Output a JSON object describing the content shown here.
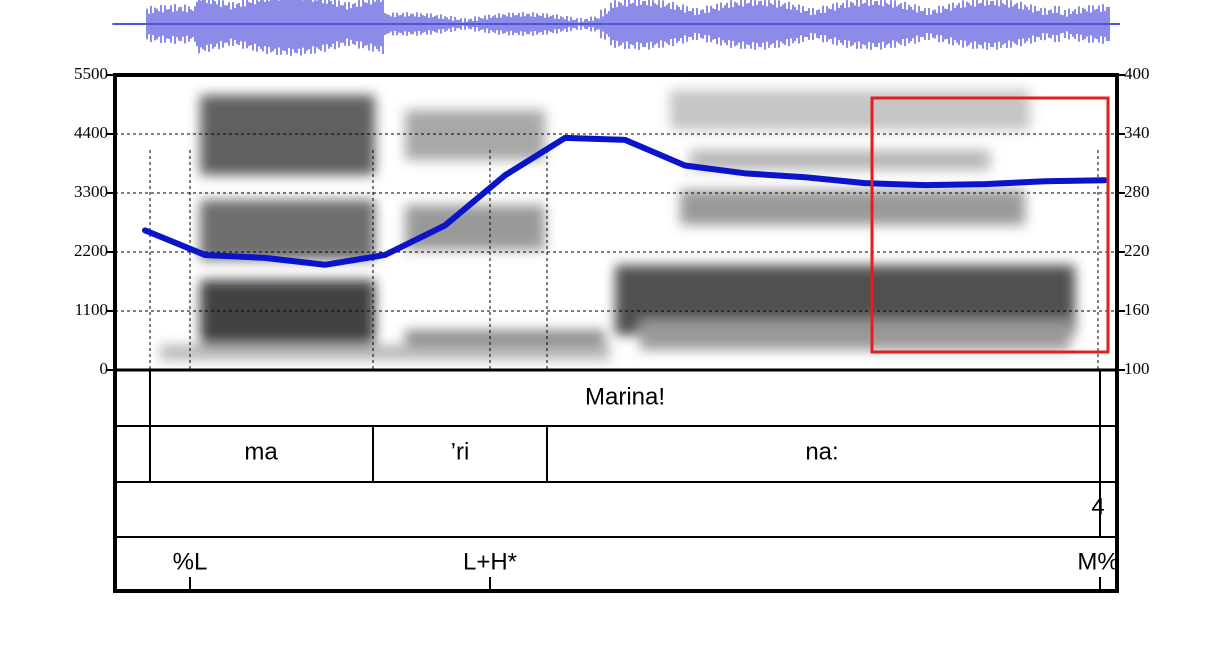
{
  "spectrogram": {
    "ylim": [
      0,
      5500
    ],
    "yticks": [
      0,
      1100,
      2200,
      3300,
      4400,
      5500
    ],
    "y2lim": [
      100,
      400
    ],
    "y2ticks": [
      100,
      160,
      220,
      280,
      340,
      400
    ],
    "pitch_color": "#0a14c8",
    "pitch": [
      242,
      217,
      214,
      207,
      217,
      247,
      298,
      336,
      334,
      308,
      300,
      296,
      290,
      288,
      289,
      292,
      293
    ]
  },
  "tiers": [
    {
      "labels": [
        "Marina!"
      ]
    },
    {
      "labels": [
        "ma",
        "’ri",
        "na:"
      ]
    },
    {
      "labels": [
        "4"
      ]
    },
    {
      "labels": [
        "%L",
        "L+H*",
        "M%"
      ]
    }
  ]
}
